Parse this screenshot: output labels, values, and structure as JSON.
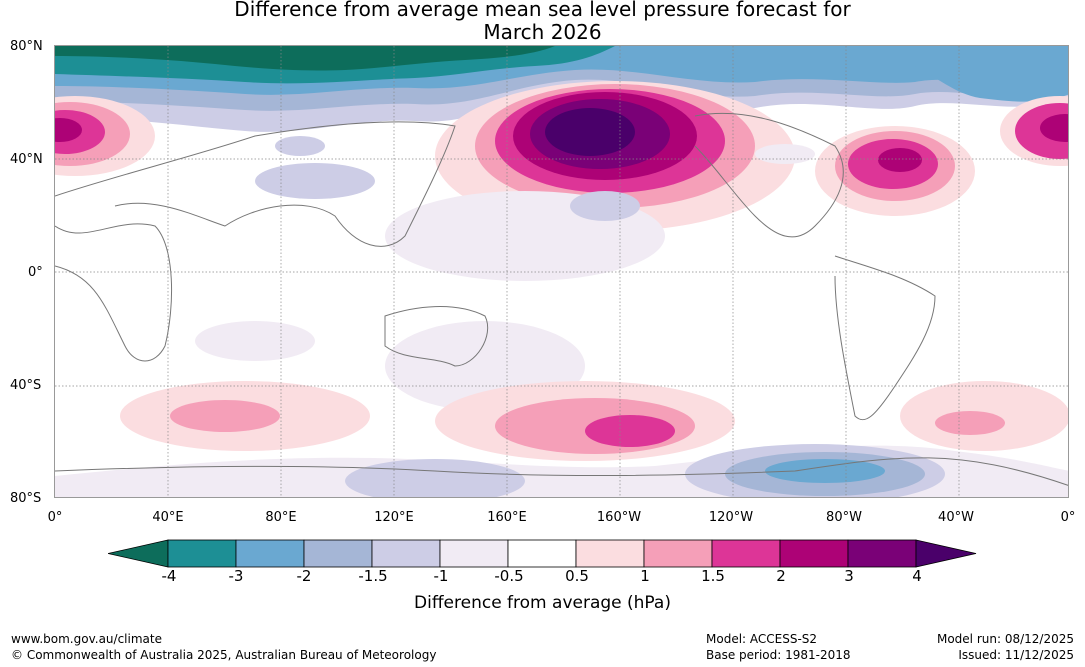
{
  "title": {
    "line1": "Difference from average mean sea level pressure forecast for",
    "line2": "March 2026"
  },
  "map": {
    "lat_labels": [
      "80°N",
      "40°N",
      "0°",
      "40°S",
      "80°S"
    ],
    "lon_labels": [
      "0°",
      "40°E",
      "80°E",
      "120°E",
      "160°E",
      "160°W",
      "120°W",
      "80°W",
      "40°W",
      "0°"
    ],
    "anomalies": [
      {
        "name": "north-pacific-high",
        "value_hpa": 4
      },
      {
        "name": "north-atlantic-high",
        "value_hpa": 3
      },
      {
        "name": "europe-high",
        "value_hpa": 2
      },
      {
        "name": "arctic-low",
        "value_hpa": -4
      },
      {
        "name": "south-pacific-high",
        "value_hpa": 2
      },
      {
        "name": "antarctic-low",
        "value_hpa": -3
      }
    ]
  },
  "colorbar": {
    "ticks": [
      "-4",
      "-3",
      "-2",
      "-1.5",
      "-1",
      "-0.5",
      "0.5",
      "1",
      "1.5",
      "2",
      "3",
      "4"
    ],
    "colors": [
      "#0d6d5b",
      "#1d8f95",
      "#6aa8d1",
      "#a5b6d6",
      "#cdcde6",
      "#f1ebf4",
      "#ffffff",
      "#fbdde0",
      "#f59fb8",
      "#dd3597",
      "#ad0276",
      "#7a0177",
      "#4a006a"
    ],
    "title": "Difference from average (hPa)"
  },
  "footer": {
    "url": "www.bom.gov.au/climate",
    "copyright": "© Commonwealth of Australia 2025, Australian Bureau of Meteorology",
    "model": "Model: ACCESS-S2",
    "base_period": "Base period: 1981-2018",
    "model_run": "Model run: 08/12/2025",
    "issued": "Issued: 11/12/2025"
  }
}
